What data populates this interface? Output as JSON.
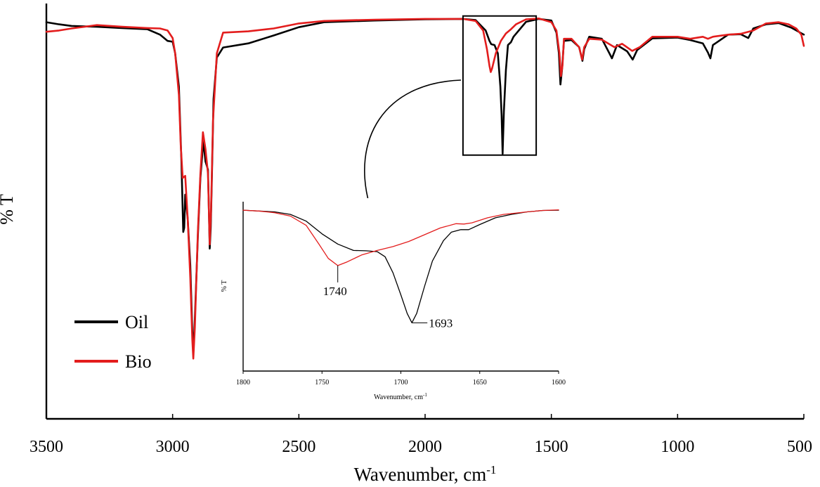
{
  "colors": {
    "oil": "#000000",
    "bio": "#e31d1d",
    "axis": "#000000",
    "background": "#ffffff"
  },
  "chart_data": [
    {
      "type": "line",
      "title": "",
      "xlabel": "Wavenumber, cm",
      "xlabel_sup": "-1",
      "ylabel": "% T",
      "xlim": [
        3500,
        500
      ],
      "ylim": [
        0,
        100
      ],
      "xticks": [
        3500,
        3000,
        2500,
        2000,
        1500,
        1000,
        500
      ],
      "legend": {
        "placement": "bottom-left",
        "entries": [
          "Oil",
          "Bio"
        ]
      },
      "series": [
        {
          "name": "Oil",
          "color": "#000000",
          "points": [
            [
              3500,
              95.5
            ],
            [
              3450,
              95
            ],
            [
              3400,
              94.6
            ],
            [
              3300,
              94.4
            ],
            [
              3200,
              94.1
            ],
            [
              3100,
              93.8
            ],
            [
              3050,
              92.5
            ],
            [
              3020,
              91
            ],
            [
              3000,
              90.8
            ],
            [
              2990,
              88
            ],
            [
              2975,
              80
            ],
            [
              2965,
              62
            ],
            [
              2958,
              45
            ],
            [
              2954,
              46
            ],
            [
              2950,
              54
            ],
            [
              2940,
              48
            ],
            [
              2930,
              37
            ],
            [
              2922,
              21
            ],
            [
              2918,
              16
            ],
            [
              2912,
              24
            ],
            [
              2900,
              44
            ],
            [
              2890,
              58
            ],
            [
              2878,
              67
            ],
            [
              2870,
              62
            ],
            [
              2860,
              60
            ],
            [
              2853,
              41
            ],
            [
              2849,
              46
            ],
            [
              2845,
              57
            ],
            [
              2838,
              77
            ],
            [
              2825,
              87
            ],
            [
              2800,
              89.4
            ],
            [
              2700,
              90.4
            ],
            [
              2600,
              92.3
            ],
            [
              2500,
              94.3
            ],
            [
              2400,
              95.5
            ],
            [
              2200,
              95.9
            ],
            [
              2000,
              96.2
            ],
            [
              1850,
              96.3
            ],
            [
              1800,
              96
            ],
            [
              1760,
              93.5
            ],
            [
              1745,
              91
            ],
            [
              1738,
              90.2
            ],
            [
              1725,
              90
            ],
            [
              1712,
              88
            ],
            [
              1702,
              80
            ],
            [
              1697,
              73
            ],
            [
              1693,
              63.8
            ],
            [
              1688,
              74
            ],
            [
              1680,
              84
            ],
            [
              1672,
              90
            ],
            [
              1660,
              90.7
            ],
            [
              1650,
              92
            ],
            [
              1600,
              95.6
            ],
            [
              1550,
              96.3
            ],
            [
              1500,
              95.9
            ],
            [
              1480,
              93
            ],
            [
              1470,
              88
            ],
            [
              1464,
              80.5
            ],
            [
              1458,
              84
            ],
            [
              1450,
              91
            ],
            [
              1420,
              91.2
            ],
            [
              1390,
              89.5
            ],
            [
              1377,
              86.2
            ],
            [
              1370,
              89
            ],
            [
              1350,
              92
            ],
            [
              1300,
              91.5
            ],
            [
              1270,
              88
            ],
            [
              1260,
              86.8
            ],
            [
              1240,
              90
            ],
            [
              1200,
              88.5
            ],
            [
              1178,
              86.5
            ],
            [
              1160,
              88.8
            ],
            [
              1100,
              91.6
            ],
            [
              1000,
              91.8
            ],
            [
              950,
              91.2
            ],
            [
              900,
              90.4
            ],
            [
              880,
              88.2
            ],
            [
              870,
              86.8
            ],
            [
              860,
              90
            ],
            [
              800,
              92.5
            ],
            [
              750,
              92.6
            ],
            [
              720,
              91.7
            ],
            [
              700,
              94
            ],
            [
              650,
              95
            ],
            [
              600,
              95.3
            ],
            [
              550,
              94.2
            ],
            [
              500,
              92.5
            ]
          ]
        },
        {
          "name": "Bio",
          "color": "#e31d1d",
          "points": [
            [
              3500,
              93.2
            ],
            [
              3450,
              93.5
            ],
            [
              3400,
              94
            ],
            [
              3300,
              94.8
            ],
            [
              3200,
              94.4
            ],
            [
              3100,
              94.1
            ],
            [
              3050,
              94
            ],
            [
              3020,
              93.5
            ],
            [
              3000,
              91.7
            ],
            [
              2990,
              88
            ],
            [
              2975,
              78
            ],
            [
              2968,
              66
            ],
            [
              2960,
              58
            ],
            [
              2950,
              58.5
            ],
            [
              2940,
              48
            ],
            [
              2930,
              34
            ],
            [
              2922,
              19
            ],
            [
              2918,
              14.5
            ],
            [
              2912,
              22
            ],
            [
              2900,
              45
            ],
            [
              2890,
              59
            ],
            [
              2880,
              69
            ],
            [
              2870,
              65
            ],
            [
              2860,
              59
            ],
            [
              2853,
              42
            ],
            [
              2848,
              50
            ],
            [
              2840,
              72
            ],
            [
              2825,
              88
            ],
            [
              2800,
              93
            ],
            [
              2700,
              93.3
            ],
            [
              2600,
              94
            ],
            [
              2500,
              95.2
            ],
            [
              2400,
              95.8
            ],
            [
              2200,
              96.1
            ],
            [
              2000,
              96.3
            ],
            [
              1850,
              96.3
            ],
            [
              1800,
              95.8
            ],
            [
              1770,
              93.5
            ],
            [
              1755,
              89
            ],
            [
              1745,
              85
            ],
            [
              1740,
              83.5
            ],
            [
              1735,
              84.3
            ],
            [
              1720,
              88
            ],
            [
              1700,
              91
            ],
            [
              1680,
              92.8
            ],
            [
              1660,
              93.8
            ],
            [
              1640,
              95
            ],
            [
              1600,
              96.2
            ],
            [
              1550,
              96.4
            ],
            [
              1500,
              95.5
            ],
            [
              1480,
              93.5
            ],
            [
              1468,
              88
            ],
            [
              1462,
              82.5
            ],
            [
              1456,
              85
            ],
            [
              1450,
              91.5
            ],
            [
              1420,
              91.5
            ],
            [
              1390,
              89.5
            ],
            [
              1378,
              86.5
            ],
            [
              1370,
              89.5
            ],
            [
              1350,
              91.5
            ],
            [
              1300,
              91.3
            ],
            [
              1270,
              90.2
            ],
            [
              1250,
              89.5
            ],
            [
              1220,
              90.3
            ],
            [
              1180,
              88.6
            ],
            [
              1150,
              89.5
            ],
            [
              1100,
              92
            ],
            [
              1000,
              92
            ],
            [
              950,
              91.5
            ],
            [
              900,
              92
            ],
            [
              880,
              91.5
            ],
            [
              860,
              92
            ],
            [
              800,
              92.5
            ],
            [
              750,
              92.7
            ],
            [
              700,
              93.5
            ],
            [
              650,
              95.2
            ],
            [
              600,
              95.5
            ],
            [
              560,
              95
            ],
            [
              530,
              94
            ],
            [
              510,
              92.5
            ],
            [
              500,
              89.8
            ]
          ]
        }
      ],
      "highlight_box": {
        "x_range": [
          1850,
          1560
        ],
        "y_range": [
          63.5,
          97
        ]
      }
    },
    {
      "type": "line",
      "title": "",
      "xlabel": "Wavenumber, cm",
      "xlabel_sup": "-1",
      "ylabel": "% T",
      "xlim": [
        1800,
        1600
      ],
      "ylim": [
        0,
        100
      ],
      "xticks": [
        1800,
        1750,
        1700,
        1650,
        1600
      ],
      "annotations": [
        {
          "label": "1740",
          "x": 1740,
          "series": "Bio"
        },
        {
          "label": "1693",
          "x": 1693,
          "series": "Oil"
        }
      ],
      "series": [
        {
          "name": "Oil",
          "color": "#000000",
          "points": [
            [
              1800,
              95
            ],
            [
              1790,
              94.5
            ],
            [
              1780,
              94
            ],
            [
              1770,
              92.5
            ],
            [
              1760,
              88.5
            ],
            [
              1750,
              81
            ],
            [
              1740,
              75
            ],
            [
              1730,
              71.2
            ],
            [
              1722,
              71
            ],
            [
              1715,
              70.5
            ],
            [
              1710,
              67.5
            ],
            [
              1705,
              58
            ],
            [
              1700,
              45
            ],
            [
              1696,
              34
            ],
            [
              1693,
              28.5
            ],
            [
              1690,
              34
            ],
            [
              1685,
              50
            ],
            [
              1680,
              65
            ],
            [
              1673,
              77
            ],
            [
              1668,
              82
            ],
            [
              1662,
              83.5
            ],
            [
              1657,
              83.5
            ],
            [
              1650,
              86.5
            ],
            [
              1640,
              90.5
            ],
            [
              1630,
              92.5
            ],
            [
              1620,
              94
            ],
            [
              1610,
              94.8
            ],
            [
              1600,
              95
            ]
          ]
        },
        {
          "name": "Bio",
          "color": "#e31d1d",
          "points": [
            [
              1800,
              95
            ],
            [
              1790,
              94.5
            ],
            [
              1780,
              93.5
            ],
            [
              1770,
              91.5
            ],
            [
              1760,
              86
            ],
            [
              1752,
              75
            ],
            [
              1746,
              66.5
            ],
            [
              1740,
              62.3
            ],
            [
              1734,
              64.5
            ],
            [
              1725,
              68.5
            ],
            [
              1715,
              71.2
            ],
            [
              1705,
              73.5
            ],
            [
              1695,
              76.5
            ],
            [
              1685,
              80.5
            ],
            [
              1675,
              84.5
            ],
            [
              1665,
              87
            ],
            [
              1660,
              86.8
            ],
            [
              1655,
              87.5
            ],
            [
              1645,
              90.5
            ],
            [
              1635,
              92.5
            ],
            [
              1620,
              94
            ],
            [
              1610,
              94.8
            ],
            [
              1600,
              95.2
            ]
          ]
        }
      ]
    }
  ]
}
